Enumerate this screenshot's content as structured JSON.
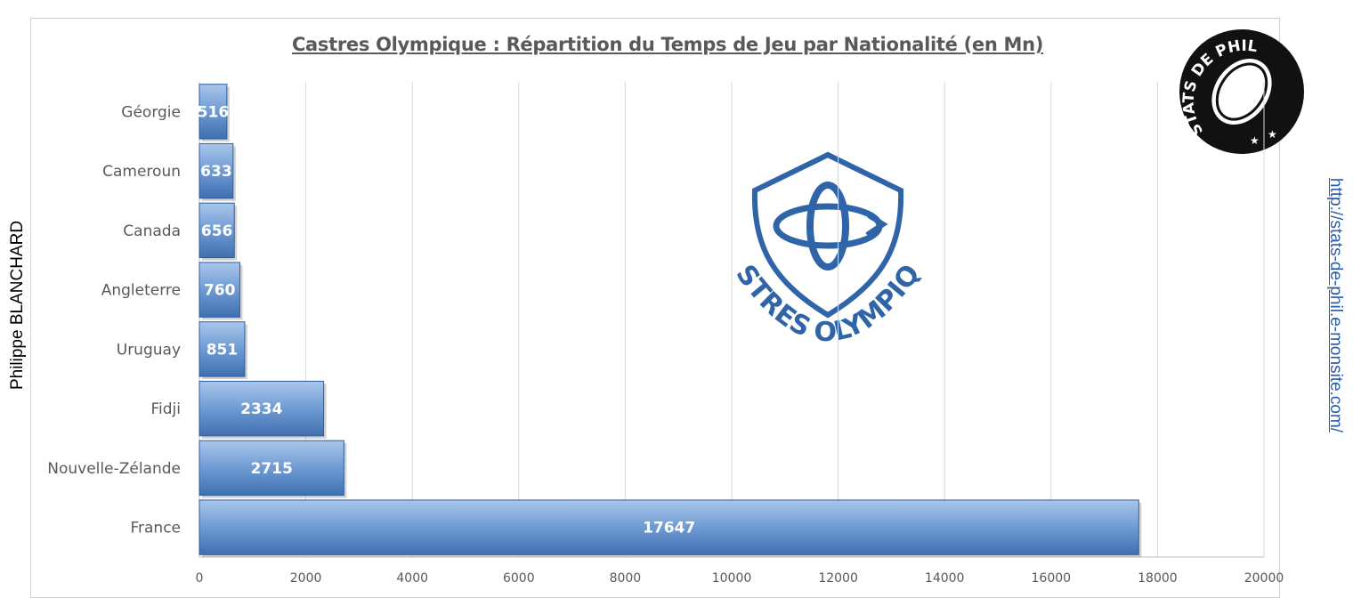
{
  "chart_data": {
    "type": "bar",
    "orientation": "horizontal",
    "title": "Castres Olympique : Répartition du Temps de Jeu  par Nationalité (en Mn)",
    "categories": [
      "Géorgie",
      "Cameroun",
      "Canada",
      "Angleterre",
      "Uruguay",
      "Fidji",
      "Nouvelle-Zélande",
      "France"
    ],
    "values": [
      516,
      633,
      656,
      760,
      851,
      2334,
      2715,
      17647
    ],
    "xlim": [
      0,
      20000
    ],
    "xticks": [
      0,
      2000,
      4000,
      6000,
      8000,
      10000,
      12000,
      14000,
      16000,
      18000,
      20000
    ],
    "grid": "vertical",
    "bar_color": "#5b8fcc",
    "data_labels": "inside"
  },
  "side_text": {
    "author": "Philippe BLANCHARD",
    "site": "http://stats-de-phil.e-monsite.com/"
  },
  "logos": {
    "club_name": "CASTRES OLYMPIQUE",
    "club_color": "#2f65a8",
    "stamp_top": "STATS DE PHIL"
  }
}
